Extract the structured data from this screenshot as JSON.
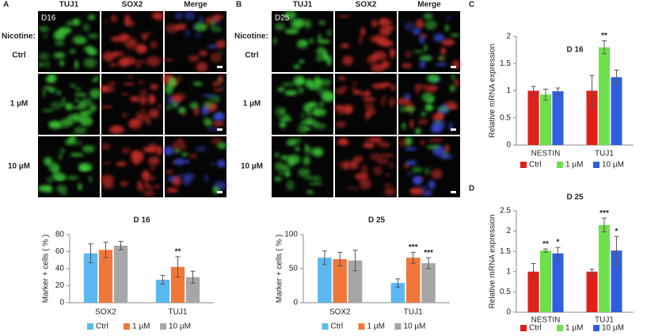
{
  "micrographs": [
    {
      "panel": "A",
      "tag": "D16",
      "columns": [
        "TUJ1",
        "SOX2",
        "Merge"
      ],
      "row_title": "Nicotine:",
      "rows": [
        "Ctrl",
        "1 µM",
        "10 µM"
      ]
    },
    {
      "panel": "B",
      "tag": "D25",
      "columns": [
        "TUJ1",
        "SOX2",
        "Merge"
      ],
      "row_title": "Nicotine:",
      "rows": [
        "Ctrl",
        "1 µM",
        "10 µM"
      ]
    }
  ],
  "chart_data": [
    {
      "type": "bar",
      "title": "D 16",
      "y_label": "Marker + cells ( % )",
      "categories": [
        "SOX2",
        "TUJ1"
      ],
      "series": [
        {
          "name": "Ctrl",
          "color": "#5bb8f0",
          "values": [
            58,
            27
          ],
          "errors": [
            11,
            5
          ],
          "significance": [
            null,
            null
          ]
        },
        {
          "name": "1 µM",
          "color": "#f0773a",
          "values": [
            62,
            42
          ],
          "errors": [
            9,
            12
          ],
          "significance": [
            null,
            "**"
          ]
        },
        {
          "name": "10 µM",
          "color": "#a6a6a6",
          "values": [
            67,
            30
          ],
          "errors": [
            5,
            7
          ],
          "significance": [
            null,
            null
          ]
        }
      ],
      "ylim": [
        0,
        80
      ],
      "yticks": [
        0,
        20,
        40,
        60,
        80
      ],
      "grid": false
    },
    {
      "type": "bar",
      "title": "D 25",
      "y_label": "Marker + cells ( % )",
      "categories": [
        "SOX2",
        "TUJ1"
      ],
      "series": [
        {
          "name": "Ctrl",
          "color": "#5bb8f0",
          "values": [
            66,
            29
          ],
          "errors": [
            10,
            6
          ],
          "significance": [
            null,
            null
          ]
        },
        {
          "name": "1 µM",
          "color": "#f0773a",
          "values": [
            64,
            66
          ],
          "errors": [
            10,
            8
          ],
          "significance": [
            null,
            "***"
          ]
        },
        {
          "name": "10 µM",
          "color": "#a6a6a6",
          "values": [
            62,
            58
          ],
          "errors": [
            15,
            8
          ],
          "significance": [
            null,
            "***"
          ]
        }
      ],
      "ylim": [
        0,
        100
      ],
      "yticks": [
        0,
        50,
        100
      ],
      "grid": false
    },
    {
      "type": "bar",
      "panel": "C",
      "title": "D 16",
      "y_label": "Relative mRNA expression",
      "categories": [
        "NESTIN",
        "TUJ1"
      ],
      "series": [
        {
          "name": "Ctrl",
          "color": "#e0201b",
          "values": [
            1.0,
            1.0
          ],
          "errors": [
            0.08,
            0.28
          ],
          "significance": [
            null,
            null
          ]
        },
        {
          "name": "1 µM",
          "color": "#6ee04b",
          "values": [
            0.93,
            1.8
          ],
          "errors": [
            0.1,
            0.12
          ],
          "significance": [
            null,
            "**"
          ]
        },
        {
          "name": "10 µM",
          "color": "#2f5fe0",
          "values": [
            0.99,
            1.25
          ],
          "errors": [
            0.06,
            0.13
          ],
          "significance": [
            null,
            null
          ]
        }
      ],
      "ylim": [
        0,
        2
      ],
      "yticks": [
        0,
        0.5,
        1,
        1.5,
        2
      ],
      "grid": false
    },
    {
      "type": "bar",
      "panel": "D",
      "title": "D 25",
      "y_label": "Relative mRNA expression",
      "categories": [
        "NESTIN",
        "TUJ1"
      ],
      "series": [
        {
          "name": "Ctrl",
          "color": "#e0201b",
          "values": [
            1.0,
            1.0
          ],
          "errors": [
            0.2,
            0.06
          ],
          "significance": [
            null,
            null
          ]
        },
        {
          "name": "1 µM",
          "color": "#6ee04b",
          "values": [
            1.52,
            2.15
          ],
          "errors": [
            0.04,
            0.17
          ],
          "significance": [
            "**",
            "***"
          ]
        },
        {
          "name": "10 µM",
          "color": "#2f5fe0",
          "values": [
            1.45,
            1.52
          ],
          "errors": [
            0.15,
            0.35
          ],
          "significance": [
            "*",
            "*"
          ]
        }
      ],
      "ylim": [
        0,
        2.5
      ],
      "yticks": [
        0,
        0.5,
        1,
        1.5,
        2,
        2.5
      ],
      "grid": false
    }
  ]
}
